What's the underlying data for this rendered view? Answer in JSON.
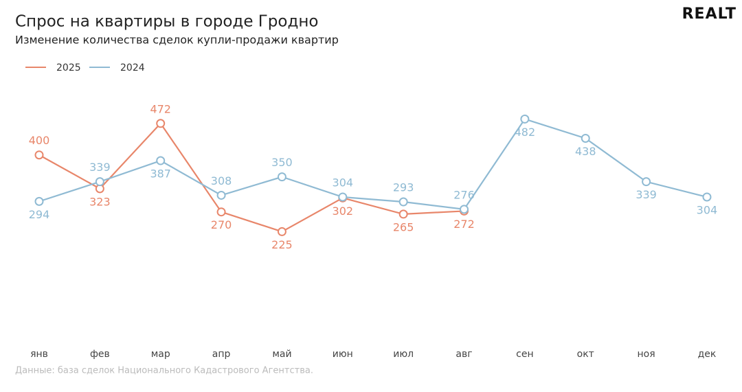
{
  "chart_data": {
    "type": "line",
    "title": "Спрос на квартиры в городе Гродно",
    "subtitle": "Изменение количества сделок купли-продажи квартир",
    "logo": "REALT",
    "source": "Данные: база сделок Национального Кадастрового Агентства.",
    "categories": [
      "янв",
      "фев",
      "мар",
      "апр",
      "май",
      "июн",
      "июл",
      "авг",
      "сен",
      "окт",
      "ноя",
      "дек"
    ],
    "series": [
      {
        "name": "2025",
        "color": "#e8866a",
        "values": [
          400,
          323,
          472,
          270,
          225,
          302,
          265,
          272,
          null,
          null,
          null,
          null
        ]
      },
      {
        "name": "2024",
        "color": "#8fbad3",
        "values": [
          294,
          339,
          387,
          308,
          350,
          304,
          293,
          276,
          482,
          438,
          339,
          304
        ]
      }
    ],
    "ylim": [
      0,
      550
    ],
    "grid": false
  }
}
